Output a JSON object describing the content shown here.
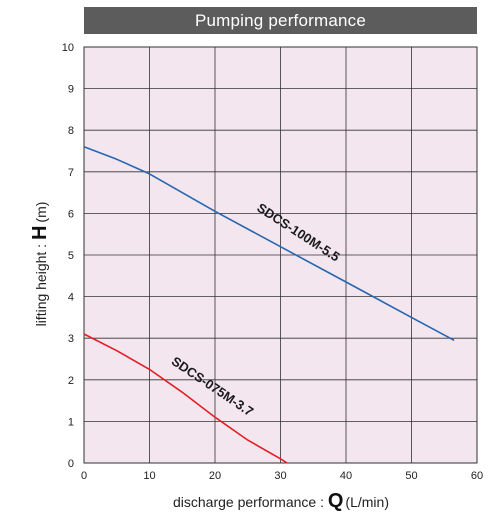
{
  "chart_data": {
    "type": "line",
    "title": "Pumping performance",
    "xlabel": "discharge performance : ",
    "xlabel_symbol": "Q",
    "xlabel_unit": "(L/min)",
    "ylabel": "lifting height : ",
    "ylabel_symbol": "H",
    "ylabel_unit": "(m)",
    "xlim": [
      0,
      60
    ],
    "ylim": [
      0,
      10
    ],
    "xticks": [
      0,
      10,
      20,
      30,
      40,
      50,
      60
    ],
    "yticks": [
      0,
      1,
      2,
      3,
      4,
      5,
      6,
      7,
      8,
      9,
      10
    ],
    "grid": true,
    "colors": {
      "plot_bg": "#f3e6ef",
      "grid": "#333333",
      "title_bg": "#5c5c5c"
    },
    "series": [
      {
        "name": "SDCS-100M-5.5",
        "color": "#2766b0",
        "x": [
          0,
          5,
          10,
          20,
          30,
          40,
          50,
          56.5
        ],
        "y": [
          7.6,
          7.3,
          6.95,
          6.05,
          5.2,
          4.35,
          3.5,
          2.95
        ]
      },
      {
        "name": "SDCS-075M-3.7",
        "color": "#e31e25",
        "x": [
          0,
          5,
          10,
          15,
          20,
          25,
          30,
          31
        ],
        "y": [
          3.1,
          2.7,
          2.25,
          1.7,
          1.1,
          0.55,
          0.1,
          0
        ]
      }
    ]
  }
}
